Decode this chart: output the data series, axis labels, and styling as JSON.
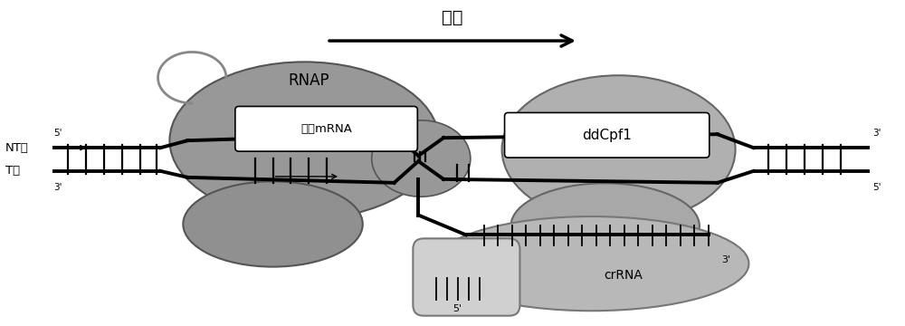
{
  "bg_color": "#ffffff",
  "title_text": "转录",
  "label_NT": "NT鐸",
  "label_T": "T鐸",
  "label_5prime_NT": "5'",
  "label_3prime_NT": "3'",
  "label_3prime_T": "3'",
  "label_5prime_T": "5'",
  "label_RNAP": "RNAP",
  "label_mRNA": "新生mRNA",
  "label_ddCpf1": "ddCpf1",
  "label_crRNA": "crRNA",
  "label_5prime_crRNA": "5'",
  "label_3prime_crRNA": "3'",
  "rnap_body_color": "#989898",
  "rnap_lobe_color": "#909090",
  "ddcpf1_body_color": "#b0b0b0",
  "ddcpf1_lobe_color": "#a8a8a8",
  "crrna_body_color": "#b8b8b8",
  "crrna_loop_color": "#c0c0c0",
  "mRNA_box_color": "#ffffff",
  "ddcpf1_box_color": "#ffffff"
}
